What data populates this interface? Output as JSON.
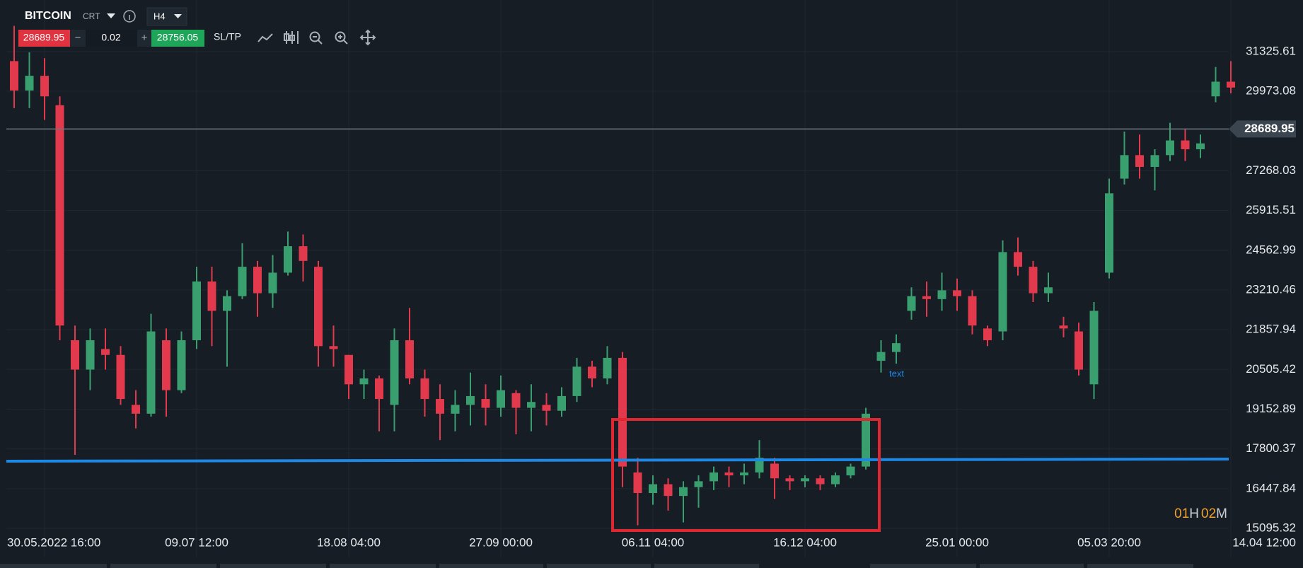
{
  "header": {
    "symbol": "BITCOIN",
    "account": "CRT",
    "timeframe": "H4"
  },
  "toolbar": {
    "sell_price": "28689.95",
    "minus": "−",
    "quantity": "0.02",
    "plus": "+",
    "buy_price": "28756.05",
    "sltp": "SL/TP"
  },
  "chart_data": {
    "type": "candlestick",
    "up_color": "#3a9f6e",
    "down_color": "#e23a4c",
    "categories": [
      null,
      null,
      "30.05.2022 16:00",
      null,
      null,
      null,
      null,
      null,
      null,
      null,
      null,
      null,
      "09.07 12:00",
      null,
      null,
      null,
      null,
      null,
      null,
      null,
      null,
      null,
      "18.08 04:00",
      null,
      null,
      null,
      null,
      null,
      null,
      null,
      null,
      null,
      "27.09 00:00",
      null,
      null,
      null,
      null,
      null,
      null,
      null,
      null,
      null,
      "06.11 04:00",
      null,
      null,
      null,
      null,
      null,
      null,
      null,
      null,
      null,
      "16.12 04:00",
      null,
      null,
      null,
      null,
      null,
      null,
      null,
      null,
      null,
      "25.01 00:00",
      null,
      null,
      null,
      null,
      null,
      null,
      null,
      null,
      null,
      "05.03 20:00",
      null,
      null,
      null,
      null,
      null,
      null,
      null,
      "14.04 12:00"
    ],
    "open": [
      31000,
      30000,
      30500,
      29500,
      21500,
      20500,
      21200,
      21000,
      19300,
      19000,
      21500,
      19800,
      21500,
      23500,
      22500,
      23000,
      24000,
      23100,
      23800,
      24700,
      24000,
      21300,
      21000,
      20000,
      20200,
      19300,
      21500,
      20200,
      19500,
      19000,
      19300,
      19500,
      19200,
      19700,
      19200,
      19300,
      19100,
      19600,
      20600,
      20200,
      20900,
      17000,
      16300,
      16600,
      16200,
      16500,
      16700,
      17000,
      16900,
      17000,
      17300,
      16800,
      16700,
      16800,
      16600,
      16900,
      17200,
      20800,
      21100,
      22500,
      23000,
      22900,
      23200,
      23000,
      21900,
      21800,
      24500,
      24000,
      23100,
      22000,
      21800,
      20000,
      23800,
      27000,
      27800,
      27400,
      27800,
      28300,
      28000,
      29800,
      30300
    ],
    "high": [
      32200,
      31300,
      31100,
      29800,
      22000,
      21900,
      21900,
      21300,
      19800,
      22400,
      21900,
      21800,
      24000,
      24000,
      23200,
      24800,
      24200,
      24400,
      25200,
      25100,
      24200,
      22000,
      21000,
      20500,
      20300,
      21900,
      22600,
      20500,
      20000,
      19800,
      20400,
      20000,
      20300,
      19800,
      20000,
      19700,
      19900,
      20900,
      20800,
      21300,
      21100,
      17500,
      16900,
      16800,
      16700,
      16900,
      17200,
      17200,
      17300,
      18100,
      17500,
      16900,
      16900,
      16900,
      17000,
      17300,
      19200,
      21500,
      21700,
      23300,
      23500,
      23800,
      23600,
      23200,
      22000,
      24900,
      25000,
      24200,
      23800,
      22300,
      22100,
      22800,
      27000,
      28600,
      28500,
      28000,
      28900,
      28700,
      28500,
      30800,
      31000
    ],
    "low": [
      29400,
      29400,
      29000,
      21500,
      17600,
      19800,
      20500,
      19300,
      18500,
      18900,
      18900,
      19700,
      21200,
      21300,
      20600,
      22900,
      22300,
      22600,
      23700,
      23500,
      20600,
      20600,
      19500,
      19500,
      18400,
      18400,
      20000,
      18900,
      18100,
      18400,
      18600,
      18600,
      18900,
      18300,
      18400,
      18600,
      18900,
      19400,
      19900,
      20000,
      16500,
      15200,
      15900,
      15700,
      15300,
      15800,
      16400,
      16500,
      16600,
      16800,
      16100,
      16400,
      16500,
      16400,
      16500,
      16800,
      17100,
      20400,
      20700,
      22200,
      22300,
      22500,
      22500,
      21700,
      21300,
      21500,
      23700,
      22800,
      22800,
      21600,
      20300,
      19500,
      23600,
      26800,
      27000,
      26600,
      27600,
      27600,
      27700,
      29600,
      29900
    ],
    "close": [
      30000,
      30500,
      29800,
      22000,
      20500,
      21500,
      21000,
      19500,
      19000,
      21800,
      19800,
      21500,
      23500,
      22500,
      23000,
      24000,
      23100,
      23800,
      24700,
      24200,
      21300,
      21200,
      20000,
      20200,
      19500,
      21500,
      20200,
      19500,
      19000,
      19300,
      19600,
      19200,
      19800,
      19200,
      19400,
      19100,
      19600,
      20600,
      20200,
      20900,
      17200,
      16300,
      16600,
      16200,
      16500,
      16700,
      17000,
      16900,
      17000,
      17500,
      16800,
      16700,
      16800,
      16600,
      16900,
      17200,
      19000,
      21100,
      21400,
      23000,
      22900,
      23200,
      23000,
      22000,
      21500,
      24500,
      24000,
      23100,
      23300,
      21900,
      20500,
      22500,
      26500,
      27800,
      27400,
      27800,
      28300,
      28000,
      28200,
      30300,
      30100
    ],
    "ylim": [
      14133,
      33080
    ],
    "yticks": [
      15095.32,
      16447.84,
      17800.37,
      19152.89,
      20505.42,
      21857.94,
      23210.46,
      24562.99,
      25915.51,
      27268.03,
      29973.08,
      31325.61
    ],
    "last_price": 28689.95,
    "annotation": "text",
    "timer": {
      "hours": "01",
      "h": "H",
      "minutes": "02",
      "m": "M"
    }
  }
}
